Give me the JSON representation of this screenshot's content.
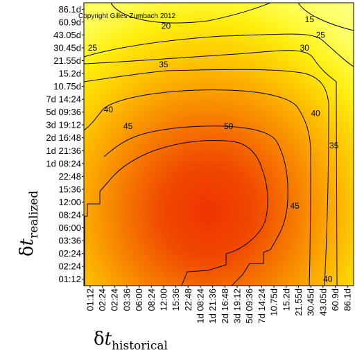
{
  "chart_data": {
    "type": "heatmap",
    "copyright": "Copyright Gilles Zumbach 2012",
    "xlabel": {
      "symbol": "δ",
      "var": "t",
      "sub": "historical"
    },
    "ylabel": {
      "symbol": "δ",
      "var": "t",
      "sub": "realized"
    },
    "ticks": [
      "01:12",
      "02:24",
      "02:24",
      "03:36",
      "06:00",
      "08:24",
      "12:00",
      "15:36",
      "22:48",
      "1d 08:24",
      "1d 21:36",
      "2d 16:48",
      "3d 19:12",
      "5d 09:36",
      "7d 14:24",
      "10.75d",
      "15.2d",
      "21.55d",
      "30.45d",
      "43.05d",
      "60.9d",
      "86.1d"
    ],
    "levels": [
      15,
      20,
      25,
      30,
      35,
      40,
      45,
      50
    ],
    "contour_labels": [
      {
        "value": "15",
        "x": 17.9,
        "y": 20.2
      },
      {
        "value": "20",
        "x": 6.2,
        "y": 19.7
      },
      {
        "value": "25",
        "x": 18.8,
        "y": 19.0
      },
      {
        "value": "25",
        "x": 0.2,
        "y": 18.0
      },
      {
        "value": "30",
        "x": 17.5,
        "y": 18.0
      },
      {
        "value": "35",
        "x": 6.0,
        "y": 16.7
      },
      {
        "value": "35",
        "x": 19.9,
        "y": 10.4
      },
      {
        "value": "40",
        "x": 1.5,
        "y": 13.2
      },
      {
        "value": "40",
        "x": 18.4,
        "y": 12.9
      },
      {
        "value": "45",
        "x": 3.1,
        "y": 11.9
      },
      {
        "value": "45",
        "x": 16.7,
        "y": 5.7
      },
      {
        "value": "50",
        "x": 11.3,
        "y": 11.9
      },
      {
        "value": "40",
        "x": 19.4,
        "y": 0.0
      }
    ]
  }
}
